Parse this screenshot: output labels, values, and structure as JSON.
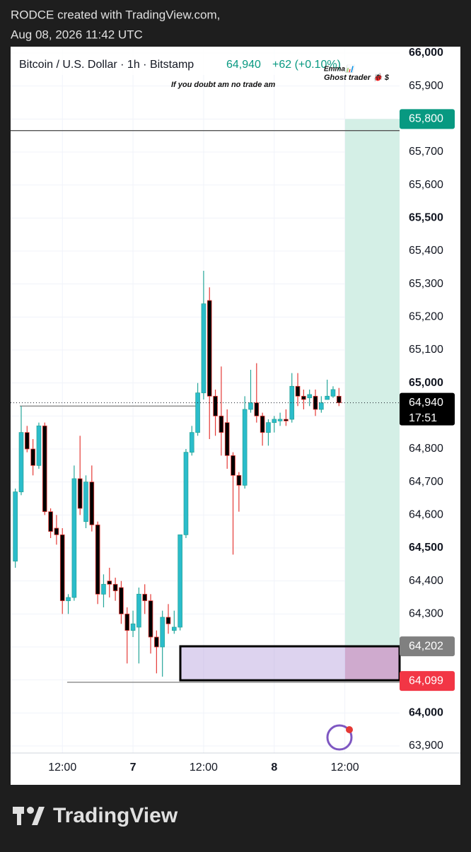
{
  "header": {
    "line1": "RODCE created with TradingView.com,",
    "line2": "Aug 08, 2026 11:42 UTC"
  },
  "footer": {
    "brand": "TradingView"
  },
  "chart_data": {
    "type": "candlestick",
    "title": "Bitcoin / U.S. Dollar · 1h · Bitstamp",
    "last_price": {
      "value": 64940,
      "label": "64,940"
    },
    "change": "+62 (+0.10%)",
    "countdown": "17:51",
    "annotations": [
      "If you doubt am no trade am",
      "Emma📊",
      "Ghost trader 🐞 $"
    ],
    "colors": {
      "up": "#2bbccb",
      "down": "#000000",
      "up_wick": "#26a69a",
      "down_wick": "#e53935"
    },
    "xlim": [
      -0.8,
      65.3
    ],
    "xticks": [
      {
        "value": 8,
        "label": "12:00"
      },
      {
        "value": 20,
        "label": "7"
      },
      {
        "value": 32,
        "label": "12:00"
      },
      {
        "value": 44,
        "label": "8"
      },
      {
        "value": 56,
        "label": "12:00"
      }
    ],
    "ylim": [
      63900,
      66000
    ],
    "yticks": [
      {
        "value": 63900,
        "label": "63,900"
      },
      {
        "value": 64000,
        "label": "64,000"
      },
      {
        "value": 64100,
        "label": "64,100"
      },
      {
        "value": 64200,
        "label": "64,200"
      },
      {
        "value": 64300,
        "label": "64,300"
      },
      {
        "value": 64400,
        "label": "64,400"
      },
      {
        "value": 64500,
        "label": "64,500"
      },
      {
        "value": 64600,
        "label": "64,600"
      },
      {
        "value": 64700,
        "label": "64,700"
      },
      {
        "value": 64800,
        "label": "64,800"
      },
      {
        "value": 64900,
        "label": "64,900"
      },
      {
        "value": 65000,
        "label": "65,000"
      },
      {
        "value": 65100,
        "label": "65,100"
      },
      {
        "value": 65200,
        "label": "65,200"
      },
      {
        "value": 65300,
        "label": "65,300"
      },
      {
        "value": 65400,
        "label": "65,400"
      },
      {
        "value": 65500,
        "label": "65,500"
      },
      {
        "value": 65600,
        "label": "65,600"
      },
      {
        "value": 65700,
        "label": "65,700"
      },
      {
        "value": 65800,
        "label": "65,800"
      },
      {
        "value": 65900,
        "label": "65,900"
      },
      {
        "value": 66000,
        "label": "66,000"
      }
    ],
    "grid": true,
    "position": {
      "target": {
        "value": 65800,
        "label": "65,800"
      },
      "entry": {
        "value": 64202,
        "label": "64,202"
      },
      "stop": {
        "value": 64099,
        "label": "64,099"
      }
    },
    "level_lines": [
      65765,
      64093,
      64930
    ],
    "open": [
      64460,
      64670,
      64850,
      64800,
      64750,
      64870,
      64610,
      64560,
      64540,
      64340,
      64350,
      64710,
      64580,
      64700,
      64570,
      64360,
      64400,
      64390,
      64380,
      64300,
      64250,
      64260,
      64360,
      64340,
      64230,
      64200,
      64290,
      64250,
      64260,
      64540,
      64790,
      64850,
      64970,
      65250,
      64960,
      64900,
      64880,
      64780,
      64720,
      64690,
      64920,
      64940,
      64900,
      64850,
      64880,
      64885,
      64890,
      64890,
      64990,
      64960,
      64955,
      64960,
      64920,
      64950,
      64960,
      64960
    ],
    "high": [
      64680,
      64930,
      64870,
      64830,
      64880,
      64880,
      64620,
      64600,
      64560,
      64360,
      64750,
      64840,
      64720,
      64750,
      64580,
      64420,
      64440,
      64410,
      64400,
      64320,
      64310,
      64380,
      64390,
      64360,
      64250,
      64310,
      64330,
      64310,
      64540,
      64800,
      64870,
      65000,
      65340,
      65290,
      64980,
      65050,
      64920,
      64790,
      64730,
      64960,
      65040,
      65060,
      64910,
      64890,
      64900,
      64910,
      64920,
      65030,
      65030,
      64980,
      64980,
      64980,
      64960,
      65010,
      64990,
      64985
    ],
    "low": [
      64440,
      64660,
      64790,
      64720,
      64740,
      64600,
      64530,
      64510,
      64300,
      64300,
      64340,
      64600,
      64560,
      64550,
      64330,
      64320,
      64350,
      64340,
      64270,
      64150,
      64230,
      64150,
      64300,
      64180,
      64120,
      64110,
      64240,
      64240,
      64250,
      64530,
      64780,
      64840,
      64950,
      64830,
      64840,
      64780,
      64740,
      64480,
      64610,
      64680,
      64910,
      64880,
      64810,
      64810,
      64850,
      64870,
      64870,
      64880,
      64930,
      64920,
      64930,
      64900,
      64910,
      64950,
      64955,
      64930
    ],
    "close": [
      64670,
      64850,
      64800,
      64750,
      64870,
      64610,
      64550,
      64540,
      64340,
      64350,
      64710,
      64620,
      64700,
      64570,
      64360,
      64390,
      64390,
      64370,
      64300,
      64250,
      64270,
      64360,
      64340,
      64230,
      64200,
      64290,
      64270,
      64260,
      64540,
      64790,
      64850,
      64970,
      65240,
      64960,
      64900,
      64850,
      64780,
      64720,
      64690,
      64920,
      64940,
      64900,
      64850,
      64880,
      64890,
      64890,
      64885,
      64990,
      64960,
      64950,
      64965,
      64920,
      64940,
      64960,
      64980,
      64940
    ]
  }
}
